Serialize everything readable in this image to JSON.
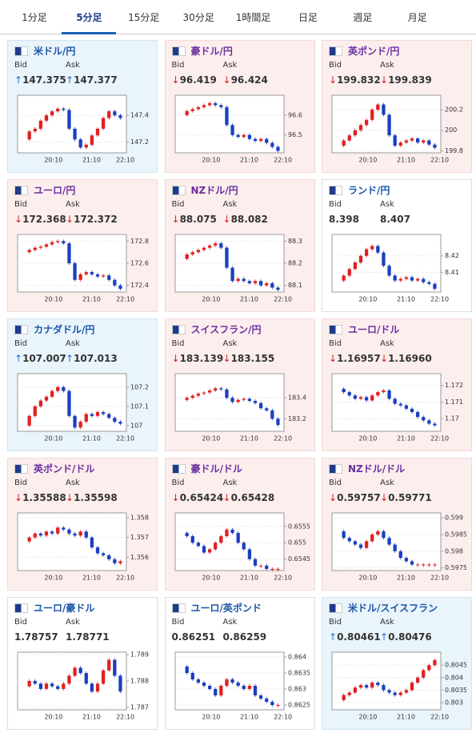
{
  "tabs": [
    "1分足",
    "5分足",
    "15分足",
    "30分足",
    "1時間足",
    "日足",
    "週足",
    "月足"
  ],
  "active_tab": 1,
  "bid_label": "Bid",
  "ask_label": "Ask",
  "xtick_labels": [
    "20:10",
    "21:10",
    "22:10"
  ],
  "tiles": [
    {
      "name": "米ドル/円",
      "trend": "up",
      "bid_arrow": "↑",
      "bid": "147.375",
      "ask_arrow": "↑",
      "ask": "147.377",
      "chart": {
        "ylim": [
          147.12,
          147.55
        ],
        "yticks": [
          147.4,
          147.2
        ],
        "closes": [
          147.22,
          147.28,
          147.3,
          147.36,
          147.4,
          147.43,
          147.45,
          147.44,
          147.3,
          147.22,
          147.16,
          147.18,
          147.25,
          147.3,
          147.38,
          147.43,
          147.4,
          147.38
        ]
      }
    },
    {
      "name": "豪ドル/円",
      "trend": "down",
      "bid_arrow": "↓",
      "bid": "96.419",
      "ask_arrow": "↓",
      "ask": "96.424",
      "chart": {
        "ylim": [
          96.41,
          96.7
        ],
        "yticks": [
          96.6,
          96.5
        ],
        "closes": [
          96.6,
          96.62,
          96.63,
          96.64,
          96.65,
          96.66,
          96.65,
          96.64,
          96.55,
          96.5,
          96.49,
          96.5,
          96.48,
          96.47,
          96.48,
          96.46,
          96.44,
          96.42
        ]
      }
    },
    {
      "name": "英ポンド/円",
      "trend": "down",
      "bid_arrow": "↓",
      "bid": "199.832",
      "ask_arrow": "↓",
      "ask": "199.839",
      "chart": {
        "ylim": [
          199.78,
          200.34
        ],
        "yticks": [
          200.2,
          200,
          199.8
        ],
        "closes": [
          199.85,
          199.9,
          199.95,
          200.0,
          200.05,
          200.1,
          200.2,
          200.25,
          200.15,
          199.95,
          199.85,
          199.88,
          199.9,
          199.92,
          199.88,
          199.9,
          199.86,
          199.83
        ]
      }
    },
    {
      "name": "ユーロ/円",
      "trend": "down",
      "bid_arrow": "↓",
      "bid": "172.368",
      "ask_arrow": "↓",
      "ask": "172.372",
      "chart": {
        "ylim": [
          172.34,
          172.86
        ],
        "yticks": [
          172.8,
          172.6,
          172.4
        ],
        "closes": [
          172.7,
          172.72,
          172.74,
          172.75,
          172.77,
          172.79,
          172.8,
          172.78,
          172.6,
          172.45,
          172.5,
          172.52,
          172.5,
          172.48,
          172.49,
          172.45,
          172.4,
          172.37
        ]
      }
    },
    {
      "name": "NZドル/円",
      "trend": "down",
      "bid_arrow": "↓",
      "bid": "88.075",
      "ask_arrow": "↓",
      "ask": "88.082",
      "chart": {
        "ylim": [
          88.07,
          88.33
        ],
        "yticks": [
          88.3,
          88.2,
          88.1
        ],
        "closes": [
          88.22,
          88.24,
          88.25,
          88.26,
          88.27,
          88.28,
          88.29,
          88.27,
          88.18,
          88.12,
          88.13,
          88.12,
          88.11,
          88.12,
          88.1,
          88.11,
          88.09,
          88.08
        ]
      }
    },
    {
      "name": "ランド/円",
      "trend": "flat",
      "bid": "8.398",
      "ask": "8.407",
      "chart": {
        "ylim": [
          8.398,
          8.433
        ],
        "yticks": [
          8.42,
          8.41
        ],
        "closes": [
          8.405,
          8.408,
          8.412,
          8.416,
          8.42,
          8.424,
          8.426,
          8.422,
          8.414,
          8.408,
          8.405,
          8.406,
          8.407,
          8.405,
          8.406,
          8.404,
          8.403,
          8.4
        ]
      }
    },
    {
      "name": "カナダドル/円",
      "trend": "up",
      "bid_arrow": "↑",
      "bid": "107.007",
      "ask_arrow": "↑",
      "ask": "107.013",
      "chart": {
        "ylim": [
          106.97,
          107.27
        ],
        "yticks": [
          107.2,
          107.1,
          107
        ],
        "closes": [
          107.0,
          107.05,
          107.1,
          107.13,
          107.15,
          107.18,
          107.2,
          107.18,
          107.05,
          106.99,
          107.02,
          107.06,
          107.05,
          107.07,
          107.06,
          107.04,
          107.02,
          107.01
        ]
      }
    },
    {
      "name": "スイスフラン/円",
      "trend": "down",
      "bid_arrow": "↓",
      "bid": "183.139",
      "ask_arrow": "↓",
      "ask": "183.155",
      "chart": {
        "ylim": [
          183.08,
          183.63
        ],
        "yticks": [
          183.4,
          183.2
        ],
        "closes": [
          183.38,
          183.4,
          183.42,
          183.44,
          183.45,
          183.47,
          183.49,
          183.48,
          183.4,
          183.36,
          183.38,
          183.39,
          183.37,
          183.35,
          183.3,
          183.28,
          183.2,
          183.14
        ]
      }
    },
    {
      "name": "ユーロ/ドル",
      "trend": "down",
      "bid_arrow": "↓",
      "bid": "1.16957",
      "ask_arrow": "↓",
      "ask": "1.16960",
      "chart": {
        "ylim": [
          1.16924,
          1.17271
        ],
        "yticks": [
          1.172,
          1.171,
          1.17
        ],
        "closes": [
          1.1718,
          1.1716,
          1.1714,
          1.1712,
          1.1713,
          1.1711,
          1.1714,
          1.1716,
          1.1717,
          1.1712,
          1.1709,
          1.1708,
          1.1706,
          1.1704,
          1.1701,
          1.1699,
          1.1697,
          1.1696
        ]
      }
    },
    {
      "name": "英ポンド/ドル",
      "trend": "down",
      "bid_arrow": "↓",
      "bid": "1.35588",
      "ask_arrow": "↓",
      "ask": "1.35598",
      "chart": {
        "ylim": [
          1.35533,
          1.35824
        ],
        "yticks": [
          1.358,
          1.357,
          1.356
        ],
        "closes": [
          1.3568,
          1.357,
          1.3572,
          1.3571,
          1.3573,
          1.3572,
          1.3575,
          1.3574,
          1.3572,
          1.3571,
          1.3573,
          1.357,
          1.3565,
          1.3562,
          1.3561,
          1.3559,
          1.3557,
          1.3558
        ]
      }
    },
    {
      "name": "豪ドル/ドル",
      "trend": "down",
      "bid_arrow": "↓",
      "bid": "0.65424",
      "ask_arrow": "↓",
      "ask": "0.65428",
      "chart": {
        "ylim": [
          0.65415,
          0.65591
        ],
        "yticks": [
          0.6555,
          0.655,
          0.6545
        ],
        "closes": [
          0.6553,
          0.6552,
          0.655,
          0.6549,
          0.6547,
          0.6548,
          0.655,
          0.6552,
          0.6554,
          0.6553,
          0.655,
          0.6548,
          0.6545,
          0.6543,
          0.6543,
          0.6542,
          0.6542,
          0.6542
        ]
      }
    },
    {
      "name": "NZドル/ドル",
      "trend": "down",
      "bid_arrow": "↓",
      "bid": "0.59757",
      "ask_arrow": "↓",
      "ask": "0.59771",
      "chart": {
        "ylim": [
          0.59742,
          0.59915
        ],
        "yticks": [
          0.599,
          0.5985,
          0.598,
          0.5975
        ],
        "closes": [
          0.5986,
          0.5984,
          0.5983,
          0.5982,
          0.5981,
          0.5983,
          0.5985,
          0.5986,
          0.5984,
          0.5982,
          0.598,
          0.5978,
          0.5977,
          0.5976,
          0.5976,
          0.5976,
          0.5976,
          0.5976
        ]
      }
    },
    {
      "name": "ユーロ/豪ドル",
      "trend": "flat",
      "bid": "1.78757",
      "ask": "1.78771",
      "chart": {
        "ylim": [
          1.78691,
          1.78909
        ],
        "yticks": [
          1.789,
          1.788,
          1.787
        ],
        "closes": [
          1.7878,
          1.788,
          1.7879,
          1.7877,
          1.7879,
          1.7878,
          1.7877,
          1.7879,
          1.7882,
          1.7885,
          1.7883,
          1.7879,
          1.7876,
          1.7879,
          1.7884,
          1.7888,
          1.7882,
          1.7876
        ]
      }
    },
    {
      "name": "ユーロ/英ポンド",
      "trend": "flat",
      "bid": "0.86251",
      "ask": "0.86259",
      "chart": {
        "ylim": [
          0.86235,
          0.86415
        ],
        "yticks": [
          0.864,
          0.8635,
          0.863,
          0.8625
        ],
        "closes": [
          0.8637,
          0.8635,
          0.8633,
          0.8632,
          0.8631,
          0.863,
          0.8628,
          0.8631,
          0.8633,
          0.8632,
          0.8631,
          0.863,
          0.8631,
          0.8628,
          0.8627,
          0.8626,
          0.8625,
          0.8625
        ]
      }
    },
    {
      "name": "米ドル/スイスフラン",
      "trend": "up",
      "bid_arrow": "↑",
      "bid": "0.80461",
      "ask_arrow": "↑",
      "ask": "0.80476",
      "chart": {
        "ylim": [
          0.80271,
          0.80502
        ],
        "yticks": [
          0.8045,
          0.804,
          0.8035,
          0.803
        ],
        "closes": [
          0.8031,
          0.8033,
          0.8034,
          0.8036,
          0.8037,
          0.8036,
          0.8038,
          0.8037,
          0.8035,
          0.8034,
          0.8033,
          0.8034,
          0.8035,
          0.8038,
          0.804,
          0.8043,
          0.8045,
          0.8047
        ]
      }
    }
  ]
}
